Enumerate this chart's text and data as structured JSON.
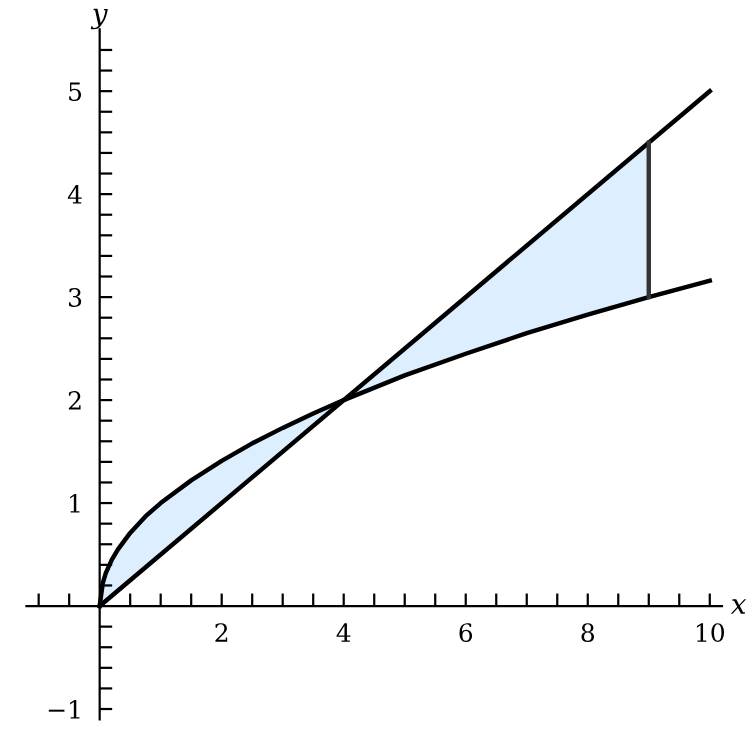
{
  "chart_data": {
    "type": "line",
    "xlabel": "x",
    "ylabel": "y",
    "xlim": [
      -1.2,
      10.2
    ],
    "ylim": [
      -1.1,
      5.6
    ],
    "xticks": [
      {
        "value": -1,
        "label": null
      },
      {
        "value": -0.5,
        "label": null
      },
      {
        "value": 0.5,
        "label": null
      },
      {
        "value": 1,
        "label": null
      },
      {
        "value": 1.5,
        "label": null
      },
      2,
      {
        "value": 2.5,
        "label": null
      },
      {
        "value": 3,
        "label": null
      },
      {
        "value": 3.5,
        "label": null
      },
      4,
      {
        "value": 4.5,
        "label": null
      },
      {
        "value": 5,
        "label": null
      },
      {
        "value": 5.5,
        "label": null
      },
      6,
      {
        "value": 6.5,
        "label": null
      },
      {
        "value": 7,
        "label": null
      },
      {
        "value": 7.5,
        "label": null
      },
      8,
      {
        "value": 8.5,
        "label": null
      },
      {
        "value": 9,
        "label": null
      },
      {
        "value": 9.5,
        "label": null
      },
      10
    ],
    "yticks": [
      {
        "value": -1,
        "label": "−1"
      },
      {
        "value": -0.8,
        "label": null
      },
      {
        "value": -0.6,
        "label": null
      },
      {
        "value": -0.4,
        "label": null
      },
      {
        "value": -0.2,
        "label": null
      },
      {
        "value": 0.2,
        "label": null
      },
      {
        "value": 0.4,
        "label": null
      },
      {
        "value": 0.6,
        "label": null
      },
      {
        "value": 0.8,
        "label": null
      },
      1,
      {
        "value": 1.2,
        "label": null
      },
      {
        "value": 1.4,
        "label": null
      },
      {
        "value": 1.6,
        "label": null
      },
      {
        "value": 1.8,
        "label": null
      },
      2,
      {
        "value": 2.2,
        "label": null
      },
      {
        "value": 2.4,
        "label": null
      },
      {
        "value": 2.6,
        "label": null
      },
      {
        "value": 2.8,
        "label": null
      },
      3,
      {
        "value": 3.2,
        "label": null
      },
      {
        "value": 3.4,
        "label": null
      },
      {
        "value": 3.6,
        "label": null
      },
      {
        "value": 3.8,
        "label": null
      },
      4,
      {
        "value": 4.2,
        "label": null
      },
      {
        "value": 4.4,
        "label": null
      },
      {
        "value": 4.6,
        "label": null
      },
      {
        "value": 4.8,
        "label": null
      },
      5,
      {
        "value": 5.2,
        "label": null
      },
      {
        "value": 5.4,
        "label": null
      }
    ],
    "grid": false,
    "legend": false,
    "marker": "none",
    "line_style": "solid",
    "series": [
      {
        "color": "#ddeeff",
        "x": [
          0,
          0.05,
          0.1,
          0.2,
          0.3,
          0.5,
          0.75,
          1,
          1.5,
          2,
          2.5,
          3,
          3.5,
          4,
          5,
          6,
          7,
          8,
          9
        ],
        "values": [
          null,
          null,
          null,
          null,
          null,
          null,
          null,
          null,
          null,
          null,
          null,
          null,
          null,
          null,
          null,
          null,
          null,
          null,
          null
        ],
        "lower": [
          0,
          0.22,
          0.32,
          0.45,
          0.55,
          0.71,
          0.87,
          1,
          1.22,
          1.41,
          1.58,
          1.73,
          1.87,
          2,
          2.24,
          2.45,
          2.65,
          2.83,
          3
        ],
        "upper": [
          0,
          0.03,
          0.05,
          0.1,
          0.15,
          0.25,
          0.38,
          0.5,
          0.75,
          1,
          1.25,
          1.5,
          1.75,
          2,
          2.5,
          3,
          3.5,
          4,
          4.5
        ]
      },
      {
        "color": "#000000",
        "x": [
          0,
          10
        ],
        "values": [
          0,
          5
        ]
      },
      {
        "color": "#000000",
        "x": [
          0,
          0.05,
          0.1,
          0.2,
          0.3,
          0.5,
          0.75,
          1,
          1.5,
          2,
          2.5,
          3,
          3.5,
          4,
          5,
          6,
          7,
          8,
          9,
          10
        ],
        "values": [
          0,
          0.22,
          0.32,
          0.45,
          0.55,
          0.71,
          0.87,
          1,
          1.22,
          1.41,
          1.58,
          1.73,
          1.87,
          2,
          2.24,
          2.45,
          2.65,
          2.83,
          3,
          3.16
        ]
      },
      {
        "color": "#333333",
        "x": [
          9,
          9
        ],
        "values": [
          3,
          4.5
        ]
      }
    ]
  }
}
